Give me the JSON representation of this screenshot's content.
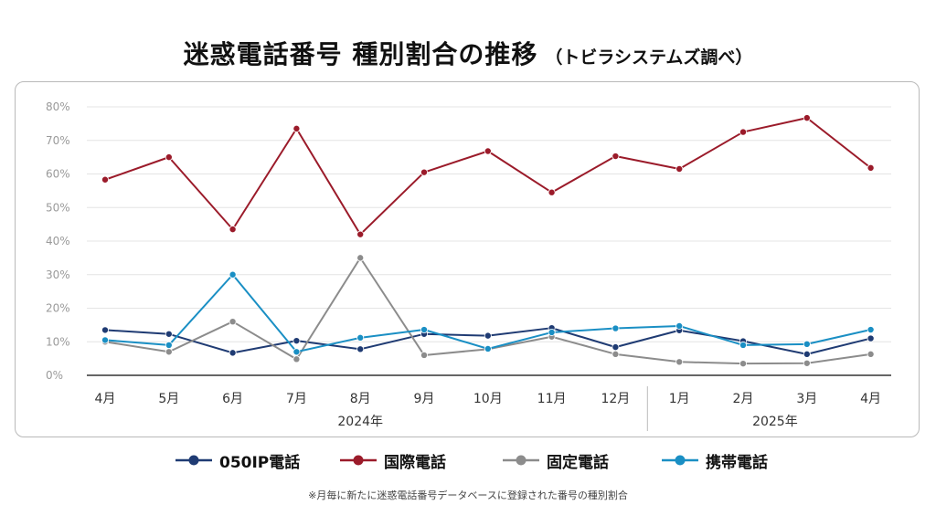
{
  "title": "迷惑電話番号 種別割合の推移",
  "subtitle": "（トビラシステムズ調べ）",
  "footnote": "※月毎に新たに迷惑電話番号データベースに登録された番号の種別割合",
  "chart_data": {
    "type": "line",
    "categories": [
      "4月",
      "5月",
      "6月",
      "7月",
      "8月",
      "9月",
      "10月",
      "11月",
      "12月",
      "1月",
      "2月",
      "3月",
      "4月"
    ],
    "year_groups": [
      {
        "label": "2024年",
        "start": 0,
        "end": 8
      },
      {
        "label": "2025年",
        "start": 9,
        "end": 12
      }
    ],
    "ylim": [
      0,
      80
    ],
    "y_ticks": [
      0,
      10,
      20,
      30,
      40,
      50,
      60,
      70,
      80
    ],
    "y_tick_labels": [
      "0%",
      "10%",
      "20%",
      "30%",
      "40%",
      "50%",
      "60%",
      "70%",
      "80%"
    ],
    "grid": true,
    "legend_position": "bottom",
    "series": [
      {
        "name": "050IP電話",
        "color": "#1f3b73",
        "values": [
          13.5,
          12.3,
          6.7,
          10.3,
          7.8,
          12.3,
          11.8,
          14.1,
          8.4,
          13.4,
          10.2,
          6.3,
          11.0
        ]
      },
      {
        "name": "国際電話",
        "color": "#9b1b2a",
        "values": [
          58.3,
          65.0,
          43.5,
          73.5,
          42.0,
          60.5,
          66.8,
          54.5,
          65.3,
          61.5,
          72.5,
          76.7,
          61.8
        ]
      },
      {
        "name": "固定電話",
        "color": "#8c8c8c",
        "values": [
          10.0,
          7.0,
          16.0,
          4.8,
          35.0,
          6.0,
          7.8,
          11.5,
          6.3,
          4.0,
          3.5,
          3.6,
          6.3
        ]
      },
      {
        "name": "携帯電話",
        "color": "#1a8fc4",
        "values": [
          10.5,
          9.0,
          30.0,
          7.0,
          11.2,
          13.6,
          7.9,
          12.8,
          14.0,
          14.7,
          9.0,
          9.3,
          13.6
        ]
      }
    ]
  }
}
